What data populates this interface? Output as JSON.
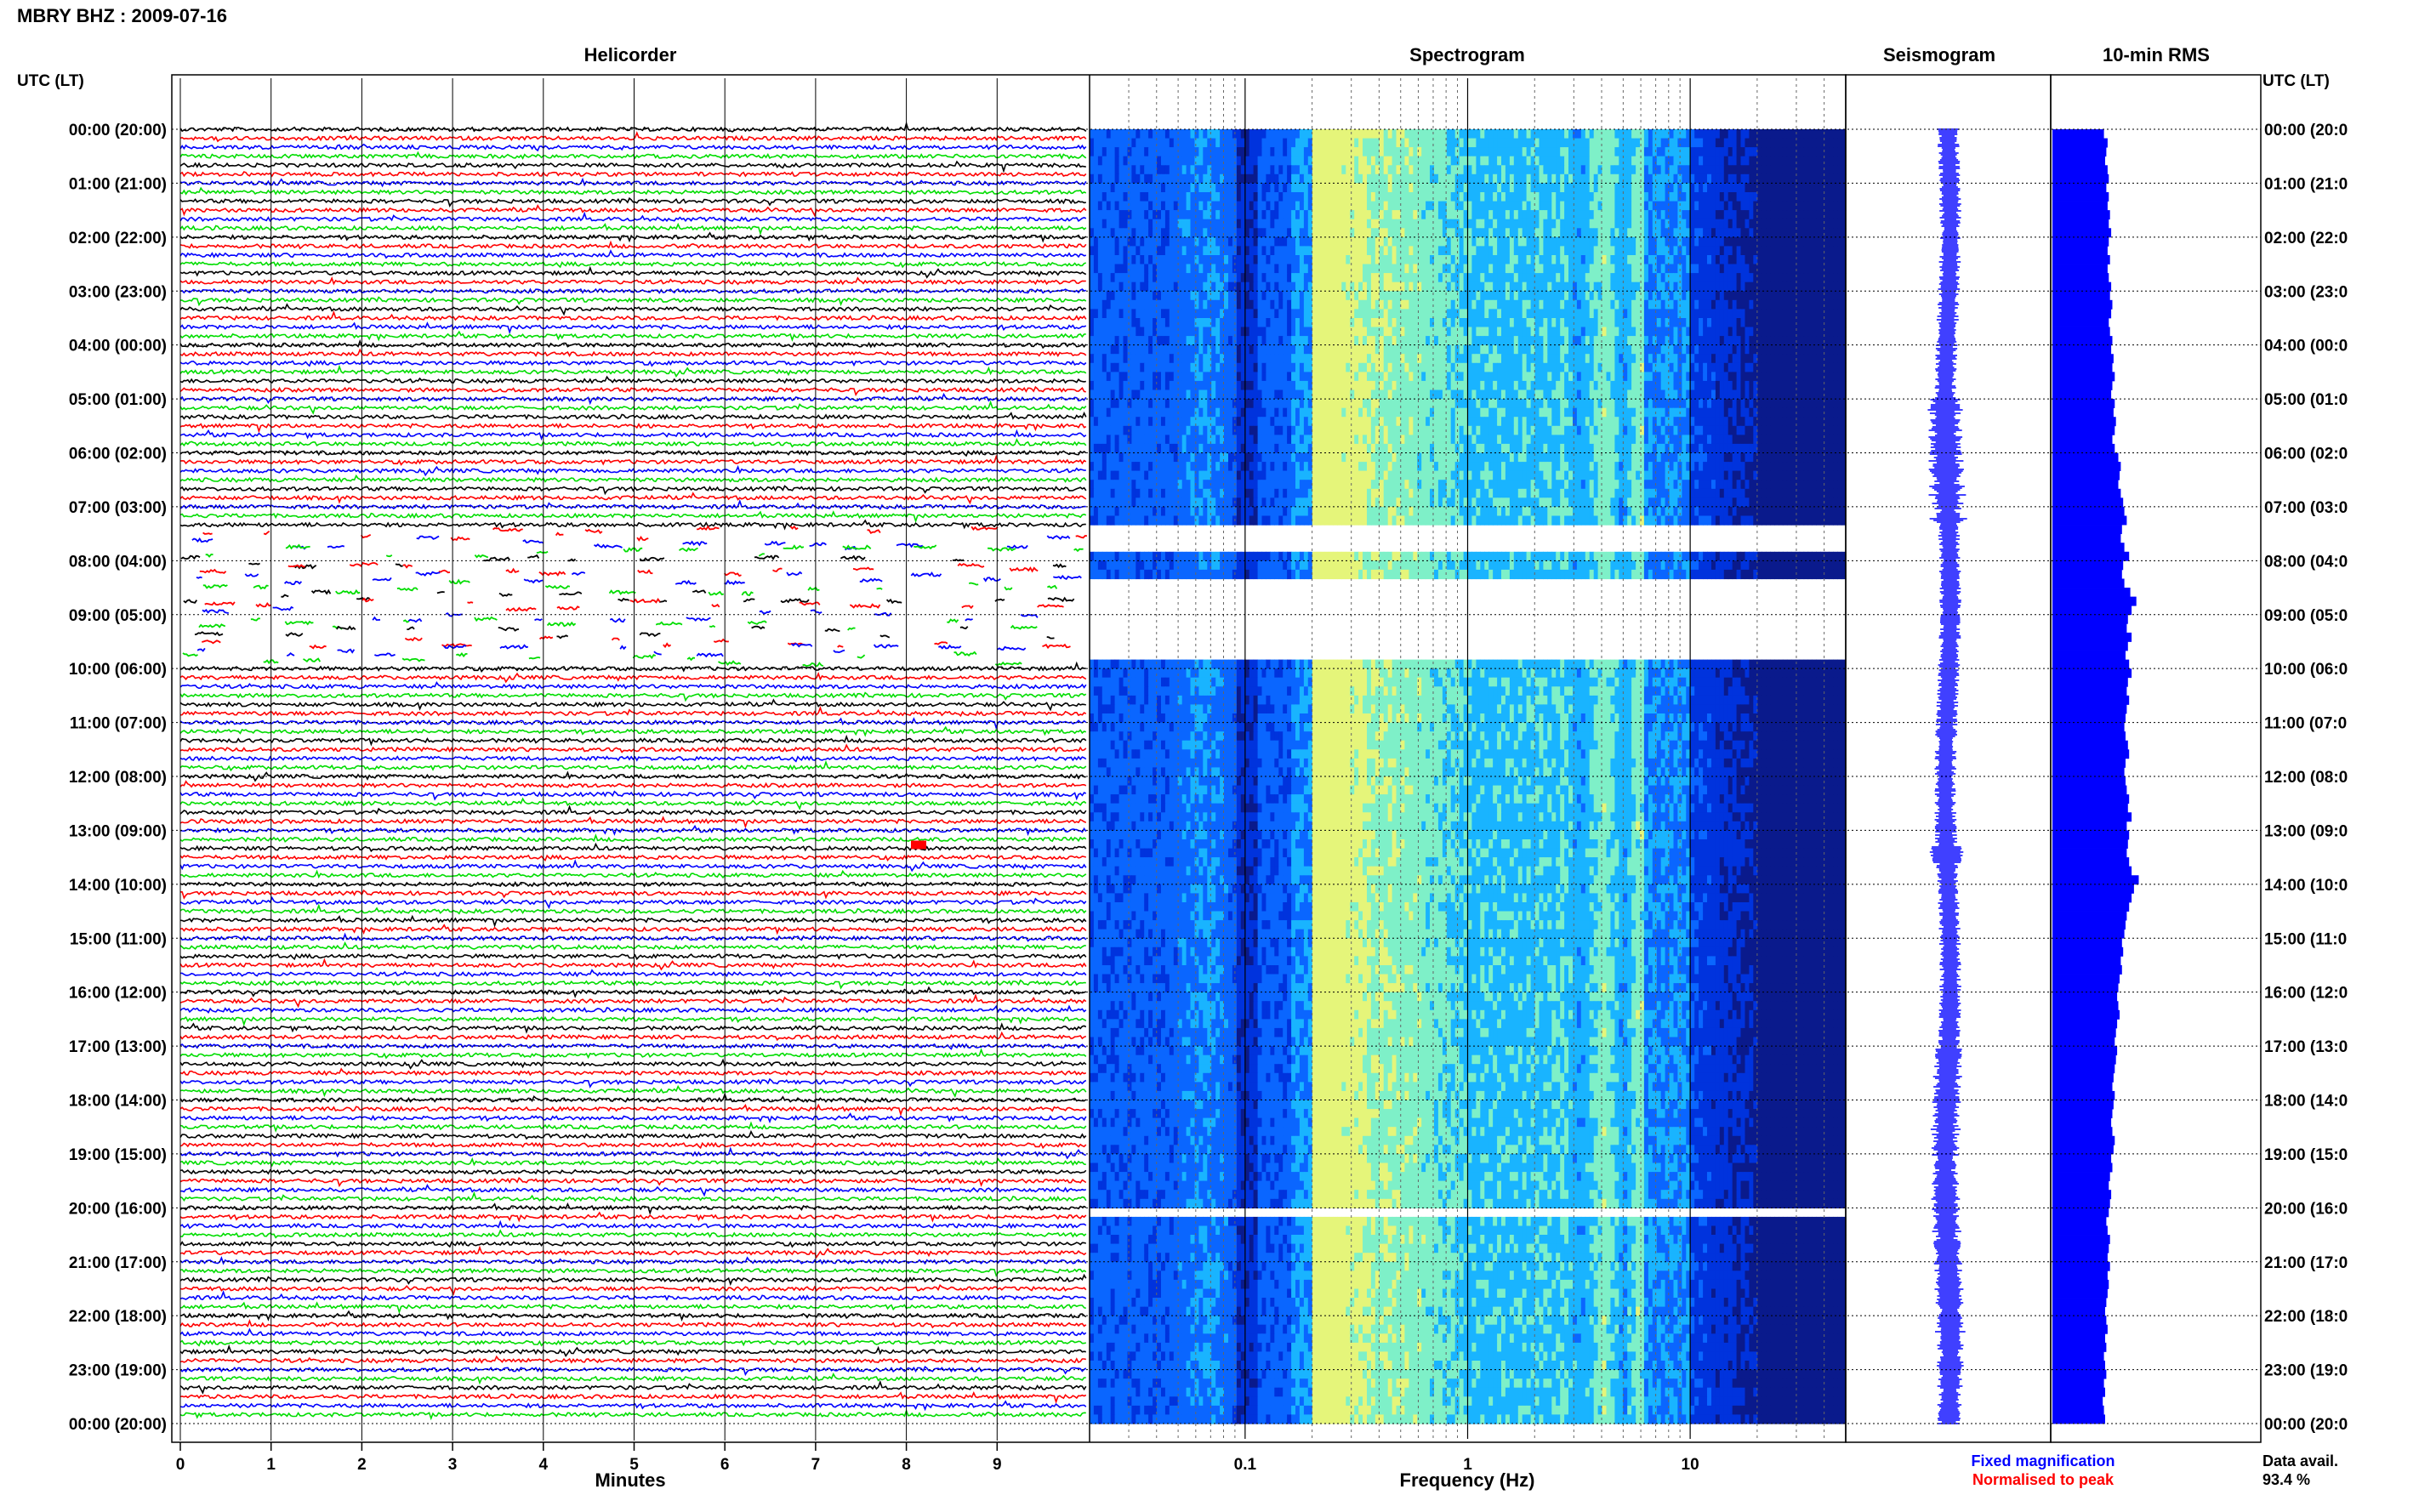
{
  "header": {
    "station_date": "MBRY BHZ : 2009-07-16"
  },
  "chart_data": {
    "type": "heatmap",
    "panels": {
      "helicorder": "Helicorder",
      "spectrogram": "Spectrogram",
      "seismogram": "Seismogram",
      "rms": "10-min RMS"
    },
    "time_axis_label": "UTC (LT)",
    "time_ticks": [
      "00:00 (20:00)",
      "01:00 (21:00)",
      "02:00 (22:00)",
      "03:00 (23:00)",
      "04:00 (00:00)",
      "05:00 (01:00)",
      "06:00 (02:00)",
      "07:00 (03:00)",
      "08:00 (04:00)",
      "09:00 (05:00)",
      "10:00 (06:00)",
      "11:00 (07:00)",
      "12:00 (08:00)",
      "13:00 (09:00)",
      "14:00 (10:00)",
      "15:00 (11:00)",
      "16:00 (12:00)",
      "17:00 (13:00)",
      "18:00 (14:00)",
      "19:00 (15:00)",
      "20:00 (16:00)",
      "21:00 (17:00)",
      "22:00 (18:00)",
      "23:00 (19:00)",
      "00:00 (20:00)"
    ],
    "right_time_ticks": [
      "00:00 (20:0",
      "01:00 (21:0",
      "02:00 (22:0",
      "03:00 (23:0",
      "04:00 (00:0",
      "05:00 (01:0",
      "06:00 (02:0",
      "07:00 (03:0",
      "08:00 (04:0",
      "09:00 (05:0",
      "10:00 (06:0",
      "11:00 (07:0",
      "12:00 (08:0",
      "13:00 (09:0",
      "14:00 (10:0",
      "15:00 (11:0",
      "16:00 (12:0",
      "17:00 (13:0",
      "18:00 (14:0",
      "19:00 (15:0",
      "20:00 (16:0",
      "21:00 (17:0",
      "22:00 (18:0",
      "23:00 (19:0",
      "00:00 (20:0"
    ],
    "helicorder": {
      "xlabel": "Minutes",
      "x_ticks": [
        0,
        1,
        2,
        3,
        4,
        5,
        6,
        7,
        8,
        9
      ],
      "xlim": [
        0,
        10
      ],
      "lines_per_hour": 6,
      "trace_colors": [
        "#000000",
        "#ff0000",
        "#0000ff",
        "#00dd00"
      ],
      "gappy_hours": [
        7.5,
        10.0
      ]
    },
    "spectrogram": {
      "xlabel": "Frequency (Hz)",
      "x_scale": "log",
      "xlim": [
        0.02,
        50
      ],
      "x_tick_labels": [
        {
          "value": 0.1,
          "label": "0.1"
        },
        {
          "value": 1,
          "label": "1"
        },
        {
          "value": 10,
          "label": "10"
        }
      ],
      "colormap": [
        "#0a1a8c",
        "#0033dd",
        "#0a66ff",
        "#19b4ff",
        "#7ef0c8",
        "#e5f57a"
      ],
      "data_gaps_hours": [
        [
          7.33,
          7.83
        ],
        [
          8.33,
          9.83
        ],
        [
          12.0,
          12.05
        ],
        [
          20.0,
          20.06
        ],
        [
          20.95,
          21.05
        ]
      ]
    },
    "seismogram": {
      "gaps_hours": [
        [
          8.2,
          8.35
        ]
      ]
    },
    "rms": {
      "interval_min": 10,
      "values_relative": [
        0.43,
        0.46,
        0.45,
        0.44,
        0.46,
        0.47,
        0.45,
        0.47,
        0.46,
        0.48,
        0.47,
        0.49,
        0.47,
        0.46,
        0.48,
        0.46,
        0.47,
        0.49,
        0.48,
        0.5,
        0.49,
        0.47,
        0.48,
        0.5,
        0.49,
        0.51,
        0.5,
        0.52,
        0.5,
        0.49,
        0.52,
        0.51,
        0.53,
        0.52,
        0.5,
        0.52,
        0.55,
        0.57,
        0.56,
        0.55,
        0.57,
        0.59,
        0.6,
        0.62,
        0.58,
        0.57,
        0.6,
        0.64,
        0.59,
        0.58,
        0.6,
        0.65,
        0.7,
        0.66,
        0.63,
        0.62,
        0.66,
        0.63,
        0.61,
        0.64,
        0.66,
        0.63,
        0.62,
        0.64,
        0.62,
        0.61,
        0.6,
        0.61,
        0.63,
        0.64,
        0.61,
        0.6,
        0.61,
        0.62,
        0.64,
        0.63,
        0.66,
        0.62,
        0.64,
        0.63,
        0.62,
        0.64,
        0.66,
        0.72,
        0.68,
        0.66,
        0.64,
        0.62,
        0.61,
        0.6,
        0.58,
        0.59,
        0.57,
        0.58,
        0.56,
        0.55,
        0.54,
        0.55,
        0.56,
        0.54,
        0.53,
        0.52,
        0.54,
        0.53,
        0.52,
        0.51,
        0.5,
        0.52,
        0.51,
        0.5,
        0.49,
        0.5,
        0.52,
        0.51,
        0.49,
        0.5,
        0.48,
        0.47,
        0.49,
        0.48,
        0.47,
        0.45,
        0.46,
        0.48,
        0.47,
        0.46,
        0.48,
        0.46,
        0.47,
        0.46,
        0.45,
        0.44,
        0.45,
        0.46,
        0.44,
        0.45,
        0.43,
        0.44,
        0.45,
        0.43,
        0.44,
        0.42,
        0.43,
        0.44
      ]
    },
    "legend": {
      "fixed": "Fixed magnification",
      "fixed_color": "#0000ff",
      "normalised": "Normalised to peak",
      "normalised_color": "#ff0000"
    },
    "availability": {
      "label": "Data avail.",
      "value": "93.4 %"
    }
  }
}
